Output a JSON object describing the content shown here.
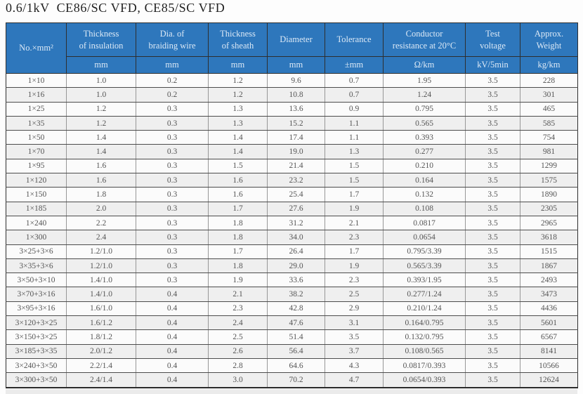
{
  "title": "0.6/1kV  CE86/SC VFD, CE85/SC VFD",
  "table": {
    "columns": [
      {
        "label": "No.×mm²",
        "unit": ""
      },
      {
        "label": "Thickness\nof insulation",
        "unit": "mm"
      },
      {
        "label": "Dia. of\nbraiding wire",
        "unit": "mm"
      },
      {
        "label": "Thickness\nof sheath",
        "unit": "mm"
      },
      {
        "label": "Diameter",
        "unit": "mm"
      },
      {
        "label": "Tolerance",
        "unit": "±mm"
      },
      {
        "label": "Conductor\nresistance at 20°C",
        "unit": "Ω/km"
      },
      {
        "label": "Test\nvoltage",
        "unit": "kV/5min"
      },
      {
        "label": "Approx.\nWeight",
        "unit": "kg/km"
      }
    ],
    "rows": [
      [
        "1×10",
        "1.0",
        "0.2",
        "1.2",
        "9.6",
        "0.7",
        "1.95",
        "3.5",
        "228"
      ],
      [
        "1×16",
        "1.0",
        "0.2",
        "1.2",
        "10.8",
        "0.7",
        "1.24",
        "3.5",
        "301"
      ],
      [
        "1×25",
        "1.2",
        "0.3",
        "1.3",
        "13.6",
        "0.9",
        "0.795",
        "3.5",
        "465"
      ],
      [
        "1×35",
        "1.2",
        "0.3",
        "1.3",
        "15.2",
        "1.1",
        "0.565",
        "3.5",
        "585"
      ],
      [
        "1×50",
        "1.4",
        "0.3",
        "1.4",
        "17.4",
        "1.1",
        "0.393",
        "3.5",
        "754"
      ],
      [
        "1×70",
        "1.4",
        "0.3",
        "1.4",
        "19.0",
        "1.3",
        "0.277",
        "3.5",
        "981"
      ],
      [
        "1×95",
        "1.6",
        "0.3",
        "1.5",
        "21.4",
        "1.5",
        "0.210",
        "3.5",
        "1299"
      ],
      [
        "1×120",
        "1.6",
        "0.3",
        "1.6",
        "23.2",
        "1.5",
        "0.164",
        "3.5",
        "1575"
      ],
      [
        "1×150",
        "1.8",
        "0.3",
        "1.6",
        "25.4",
        "1.7",
        "0.132",
        "3.5",
        "1890"
      ],
      [
        "1×185",
        "2.0",
        "0.3",
        "1.7",
        "27.6",
        "1.9",
        "0.108",
        "3.5",
        "2305"
      ],
      [
        "1×240",
        "2.2",
        "0.3",
        "1.8",
        "31.2",
        "2.1",
        "0.0817",
        "3.5",
        "2965"
      ],
      [
        "1×300",
        "2.4",
        "0.3",
        "1.8",
        "34.0",
        "2.3",
        "0.0654",
        "3.5",
        "3618"
      ],
      [
        "3×25+3×6",
        "1.2/1.0",
        "0.3",
        "1.7",
        "26.4",
        "1.7",
        "0.795/3.39",
        "3.5",
        "1515"
      ],
      [
        "3×35+3×6",
        "1.2/1.0",
        "0.3",
        "1.8",
        "29.0",
        "1.9",
        "0.565/3.39",
        "3.5",
        "1867"
      ],
      [
        "3×50+3×10",
        "1.4/1.0",
        "0.3",
        "1.9",
        "33.6",
        "2.3",
        "0.393/1.95",
        "3.5",
        "2493"
      ],
      [
        "3×70+3×16",
        "1.4/1.0",
        "0.4",
        "2.1",
        "38.2",
        "2.5",
        "0.277/1.24",
        "3.5",
        "3473"
      ],
      [
        "3×95+3×16",
        "1.6/1.0",
        "0.4",
        "2.3",
        "42.8",
        "2.9",
        "0.210/1.24",
        "3.5",
        "4436"
      ],
      [
        "3×120+3×25",
        "1.6/1.2",
        "0.4",
        "2.4",
        "47.6",
        "3.1",
        "0.164/0.795",
        "3.5",
        "5601"
      ],
      [
        "3×150+3×25",
        "1.8/1.2",
        "0.4",
        "2.5",
        "51.4",
        "3.5",
        "0.132/0.795",
        "3.5",
        "6567"
      ],
      [
        "3×185+3×35",
        "2.0/1.2",
        "0.4",
        "2.6",
        "56.4",
        "3.7",
        "0.108/0.565",
        "3.5",
        "8141"
      ],
      [
        "3×240+3×50",
        "2.2/1.4",
        "0.4",
        "2.8",
        "64.6",
        "4.3",
        "0.0817/0.393",
        "3.5",
        "10566"
      ],
      [
        "3×300+3×50",
        "2.4/1.4",
        "0.4",
        "3.0",
        "70.2",
        "4.7",
        "0.0654/0.393",
        "3.5",
        "12624"
      ]
    ]
  },
  "colors": {
    "header_bg": "#2E77BC",
    "header_text": "#DCE9F6",
    "row_odd": "#fbfbfb",
    "row_even": "#efefef",
    "body_text": "#555555",
    "border_dark": "#2e2e2e"
  }
}
